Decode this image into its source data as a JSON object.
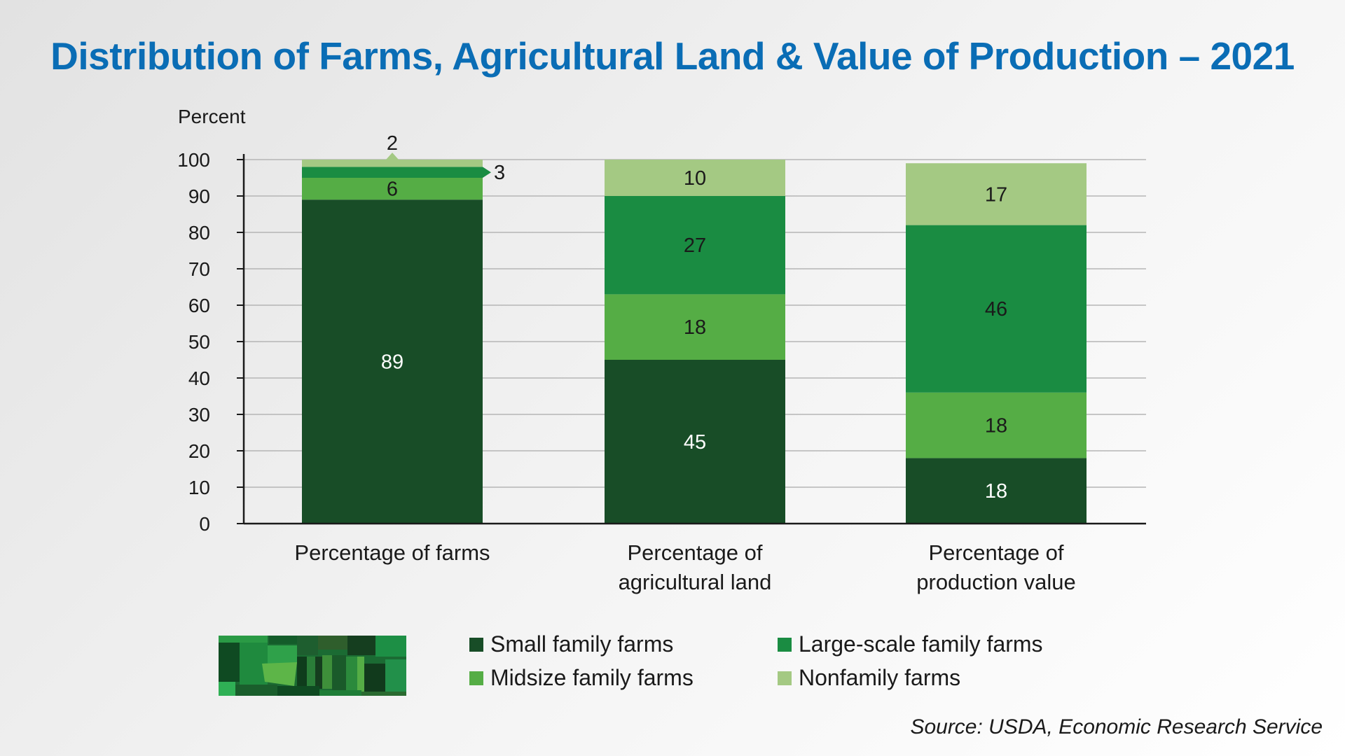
{
  "title": "Distribution of Farms, Agricultural Land & Value of Production – 2021",
  "source": "Source: USDA, Economic Research Service",
  "colors": {
    "small": "#184d27",
    "large": "#1a8c42",
    "midsize": "#55ad45",
    "nonfamily": "#a4c983"
  },
  "chart_data": {
    "type": "bar",
    "stacked": true,
    "ylabel": "Percent",
    "ylim": [
      0,
      100
    ],
    "yticks": [
      0,
      10,
      20,
      30,
      40,
      50,
      60,
      70,
      80,
      90,
      100
    ],
    "grid": true,
    "legend_position": "bottom",
    "categories": [
      [
        "Percentage of farms"
      ],
      [
        "Percentage of",
        "agricultural land"
      ],
      [
        "Percentage of",
        "production value"
      ]
    ],
    "series": [
      {
        "name": "Small family farms",
        "color_key": "small",
        "values": [
          89,
          45,
          18
        ]
      },
      {
        "name": "Midsize family farms",
        "color_key": "midsize",
        "values": [
          6,
          18,
          18
        ]
      },
      {
        "name": "Large-scale family farms",
        "color_key": "large",
        "values": [
          3,
          27,
          46
        ]
      },
      {
        "name": "Nonfamily farms",
        "color_key": "nonfamily",
        "values": [
          2,
          10,
          17
        ]
      }
    ],
    "legend_order": [
      "Small family farms",
      "Large-scale family farms",
      "Midsize family farms",
      "Nonfamily farms"
    ]
  }
}
